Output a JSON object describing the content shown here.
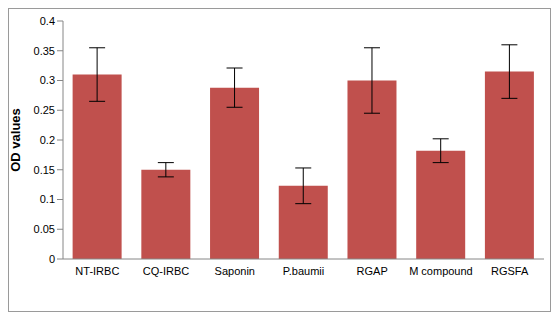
{
  "chart_data": {
    "type": "bar",
    "y_label": "OD values",
    "categories": [
      "NT-IRBC",
      "CQ-IRBC",
      "Saponin",
      "P.baumii",
      "RGAP",
      "M compound",
      "RGSFA"
    ],
    "values": [
      0.31,
      0.15,
      0.288,
      0.123,
      0.3,
      0.182,
      0.315
    ],
    "errors": [
      0.045,
      0.012,
      0.033,
      0.03,
      0.055,
      0.02,
      0.045
    ],
    "color": "#c0504d",
    "ylim": [
      0,
      0.4
    ],
    "yticks": [
      0,
      0.05,
      0.1,
      0.15,
      0.2,
      0.25,
      0.3,
      0.35,
      0.4
    ],
    "grid": false
  }
}
